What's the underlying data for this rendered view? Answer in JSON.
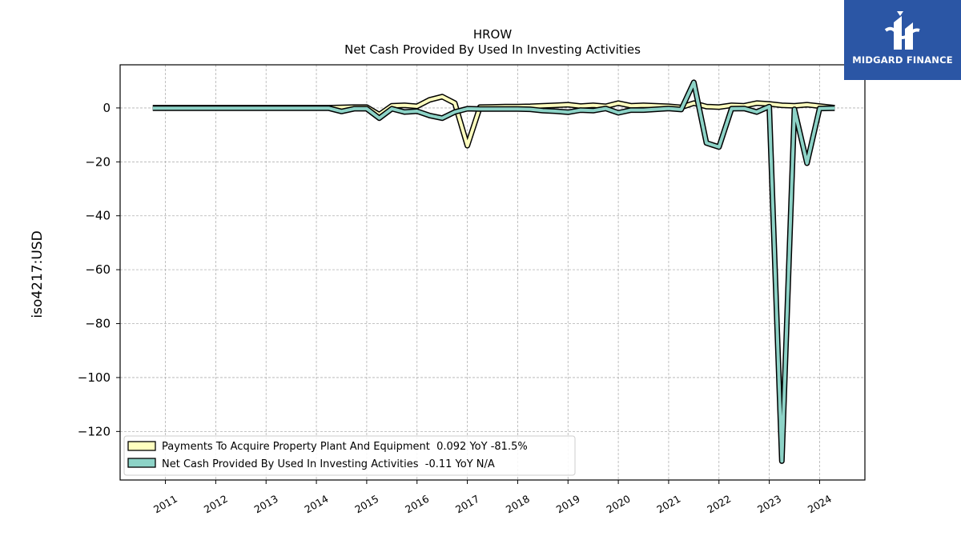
{
  "logo": {
    "text": "MIDGARD FINANCE",
    "background": "#2b56a5",
    "icon": "midgard-logo-icon"
  },
  "chart_data": {
    "type": "line",
    "title": "HROW",
    "subtitle": "Net Cash Provided By Used In Investing Activities",
    "ylabel": "iso4217:USD",
    "xlabel": "",
    "xlim": [
      2010.1,
      2024.9
    ],
    "ylim": [
      -138,
      16
    ],
    "yticks": [
      0,
      -20,
      -40,
      -60,
      -80,
      -100,
      -120
    ],
    "ytick_labels": [
      "0",
      "−20",
      "−40",
      "−60",
      "−80",
      "−100",
      "−120"
    ],
    "xticks": [
      2011,
      2012,
      2013,
      2014,
      2015,
      2016,
      2017,
      2018,
      2019,
      2020,
      2021,
      2022,
      2023,
      2024
    ],
    "xtick_labels": [
      "2011",
      "2012",
      "2013",
      "2014",
      "2015",
      "2016",
      "2017",
      "2018",
      "2019",
      "2020",
      "2021",
      "2022",
      "2023",
      "2024"
    ],
    "grid": true,
    "legend_position": "lower-left",
    "series": [
      {
        "name": "Payments To Acquire Property Plant And Equipment  0.092 YoY -81.5%",
        "color": "#ffffbf",
        "x": [
          2010.75,
          2011.0,
          2011.5,
          2012.0,
          2012.5,
          2013.0,
          2013.5,
          2014.0,
          2014.25,
          2014.5,
          2014.75,
          2015.0,
          2015.25,
          2015.5,
          2015.75,
          2016.0,
          2016.25,
          2016.5,
          2016.75,
          2017.0,
          2017.25,
          2017.5,
          2017.75,
          2018.0,
          2018.25,
          2018.5,
          2018.75,
          2019.0,
          2019.25,
          2019.5,
          2019.75,
          2020.0,
          2020.25,
          2020.5,
          2020.75,
          2021.0,
          2021.25,
          2021.5,
          2021.75,
          2022.0,
          2022.25,
          2022.5,
          2022.75,
          2023.0,
          2023.25,
          2023.5,
          2023.75,
          2024.0,
          2024.3
        ],
        "y": [
          0.1,
          0.1,
          0.1,
          0.1,
          0.1,
          0.1,
          0.1,
          0.1,
          0.1,
          0.2,
          0.3,
          0.3,
          -2.5,
          0.8,
          1.0,
          0.6,
          3.0,
          4.2,
          1.8,
          -14.0,
          0.3,
          0.4,
          0.5,
          0.5,
          0.6,
          0.8,
          1.0,
          1.2,
          0.7,
          1.0,
          0.6,
          1.8,
          0.8,
          1.0,
          0.8,
          0.6,
          0.2,
          1.8,
          0.5,
          0.3,
          1.0,
          0.8,
          1.8,
          1.5,
          1.0,
          0.8,
          1.2,
          0.7,
          0.1
        ]
      },
      {
        "name": "Net Cash Provided By Used In Investing Activities  -0.11 YoY N/A",
        "color": "#8dd3c7",
        "x": [
          2010.75,
          2011.0,
          2011.5,
          2012.0,
          2012.5,
          2013.0,
          2013.5,
          2014.0,
          2014.25,
          2014.5,
          2014.75,
          2015.0,
          2015.25,
          2015.5,
          2015.75,
          2016.0,
          2016.25,
          2016.5,
          2016.75,
          2017.0,
          2017.25,
          2017.5,
          2017.75,
          2018.0,
          2018.25,
          2018.5,
          2018.75,
          2019.0,
          2019.25,
          2019.5,
          2019.75,
          2020.0,
          2020.25,
          2020.5,
          2020.75,
          2021.0,
          2021.25,
          2021.5,
          2021.75,
          2022.0,
          2022.25,
          2022.5,
          2022.75,
          2023.0,
          2023.25,
          2023.5,
          2023.75,
          2024.0,
          2024.3
        ],
        "y": [
          -0.1,
          -0.1,
          -0.1,
          -0.1,
          -0.1,
          -0.1,
          -0.1,
          -0.1,
          -0.1,
          -1.3,
          -0.3,
          -0.3,
          -3.8,
          -0.3,
          -1.5,
          -1.2,
          -2.8,
          -3.8,
          -1.5,
          -0.3,
          -0.4,
          -0.4,
          -0.4,
          -0.4,
          -0.5,
          -1.0,
          -1.2,
          -1.6,
          -0.8,
          -1.0,
          -0.2,
          -1.8,
          -0.8,
          -0.8,
          -0.5,
          -0.2,
          -0.6,
          9.5,
          -13.0,
          -14.5,
          -0.3,
          -0.2,
          -1.5,
          0.5,
          -131.0,
          -0.5,
          -20.5,
          -0.2,
          -0.11
        ]
      }
    ]
  }
}
